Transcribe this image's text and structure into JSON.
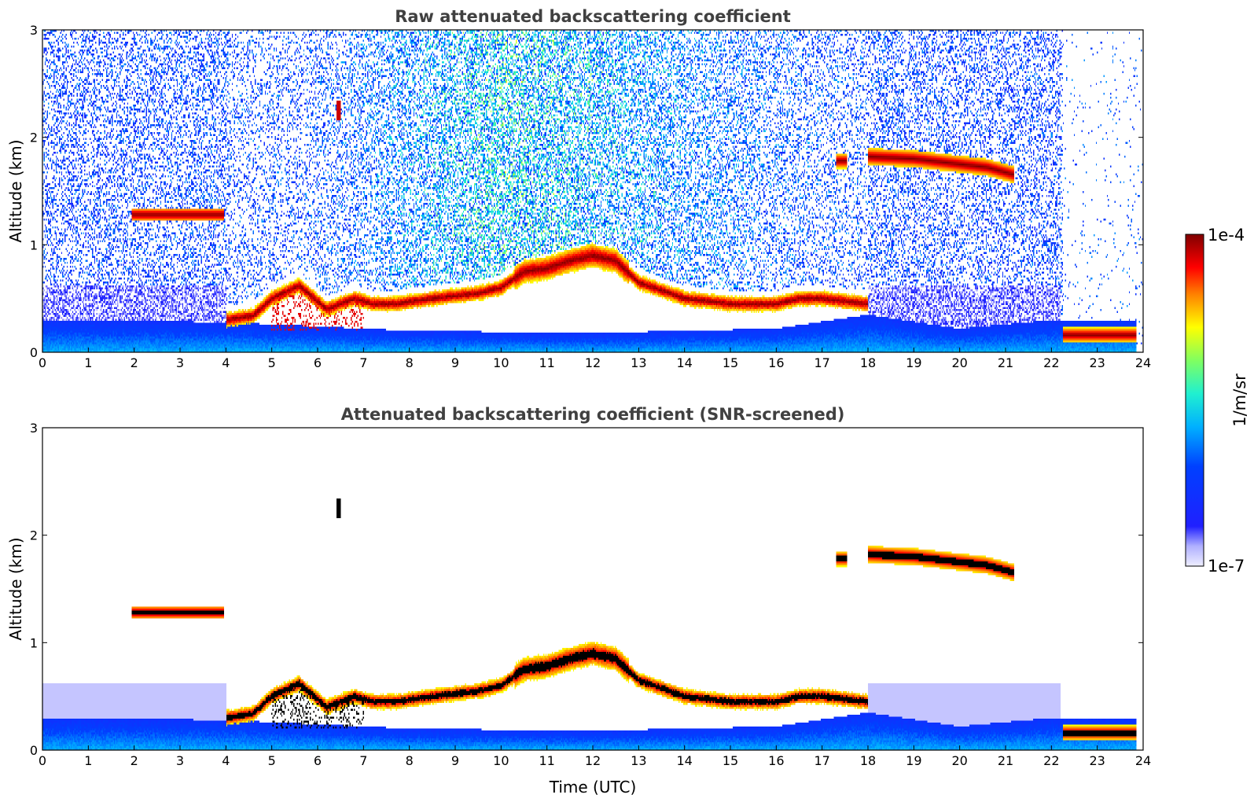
{
  "chart_data": [
    {
      "type": "heatmap",
      "title": "Raw attenuated backscattering coefficient",
      "xlabel": "",
      "ylabel": "Altitude (km)",
      "xlim": [
        0,
        24
      ],
      "ylim": [
        0,
        3
      ],
      "xticks": [
        "0",
        "1",
        "2",
        "3",
        "4",
        "5",
        "6",
        "7",
        "8",
        "9",
        "10",
        "11",
        "12",
        "13",
        "14",
        "15",
        "16",
        "17",
        "18",
        "19",
        "20",
        "21",
        "22",
        "23",
        "24"
      ],
      "yticks": [
        "0",
        "1",
        "2",
        "3"
      ],
      "colorscale": "log",
      "clim": [
        1e-07,
        0.0001
      ],
      "features": [
        {
          "kind": "cloud layer",
          "x": [
            1.95,
            3.95
          ],
          "altitude_km": 1.28
        },
        {
          "kind": "cloud layer",
          "x": [
            17.3,
            17.55
          ],
          "altitude_km": 1.78
        },
        {
          "kind": "cloud layer",
          "x": [
            18.0,
            21.2
          ],
          "altitude_km": [
            1.82,
            1.65
          ]
        },
        {
          "kind": "cloud base",
          "x": [
            4.0,
            24.0
          ],
          "altitude_km": [
            0.3,
            0.5,
            0.45,
            0.78,
            0.9,
            0.55,
            0.45,
            0.45,
            0.15
          ]
        }
      ]
    },
    {
      "type": "heatmap",
      "title": "Attenuated backscattering coefficient (SNR-screened)",
      "xlabel": "Time (UTC)",
      "ylabel": "Altitude (km)",
      "xlim": [
        0,
        24
      ],
      "ylim": [
        0,
        3
      ],
      "xticks": [
        "0",
        "1",
        "2",
        "3",
        "4",
        "5",
        "6",
        "7",
        "8",
        "9",
        "10",
        "11",
        "12",
        "13",
        "14",
        "15",
        "16",
        "17",
        "18",
        "19",
        "20",
        "21",
        "22",
        "23",
        "24"
      ],
      "yticks": [
        "0",
        "1",
        "2",
        "3"
      ],
      "colorscale": "log",
      "clim": [
        1e-07,
        0.0001
      ],
      "features": [
        {
          "kind": "cloud layer",
          "x": [
            1.95,
            3.95
          ],
          "altitude_km": 1.28
        },
        {
          "kind": "cloud layer",
          "x": [
            17.3,
            17.55
          ],
          "altitude_km": 1.78
        },
        {
          "kind": "cloud layer",
          "x": [
            18.0,
            21.2
          ],
          "altitude_km": [
            1.82,
            1.65
          ]
        },
        {
          "kind": "cloud base",
          "x": [
            4.0,
            24.0
          ],
          "altitude_km": [
            0.3,
            0.5,
            0.45,
            0.78,
            0.9,
            0.55,
            0.45,
            0.45,
            0.15
          ]
        }
      ]
    }
  ],
  "colorbar": {
    "label": "1/m/sr",
    "max_label": "1e-4",
    "min_label": "1e-7"
  }
}
